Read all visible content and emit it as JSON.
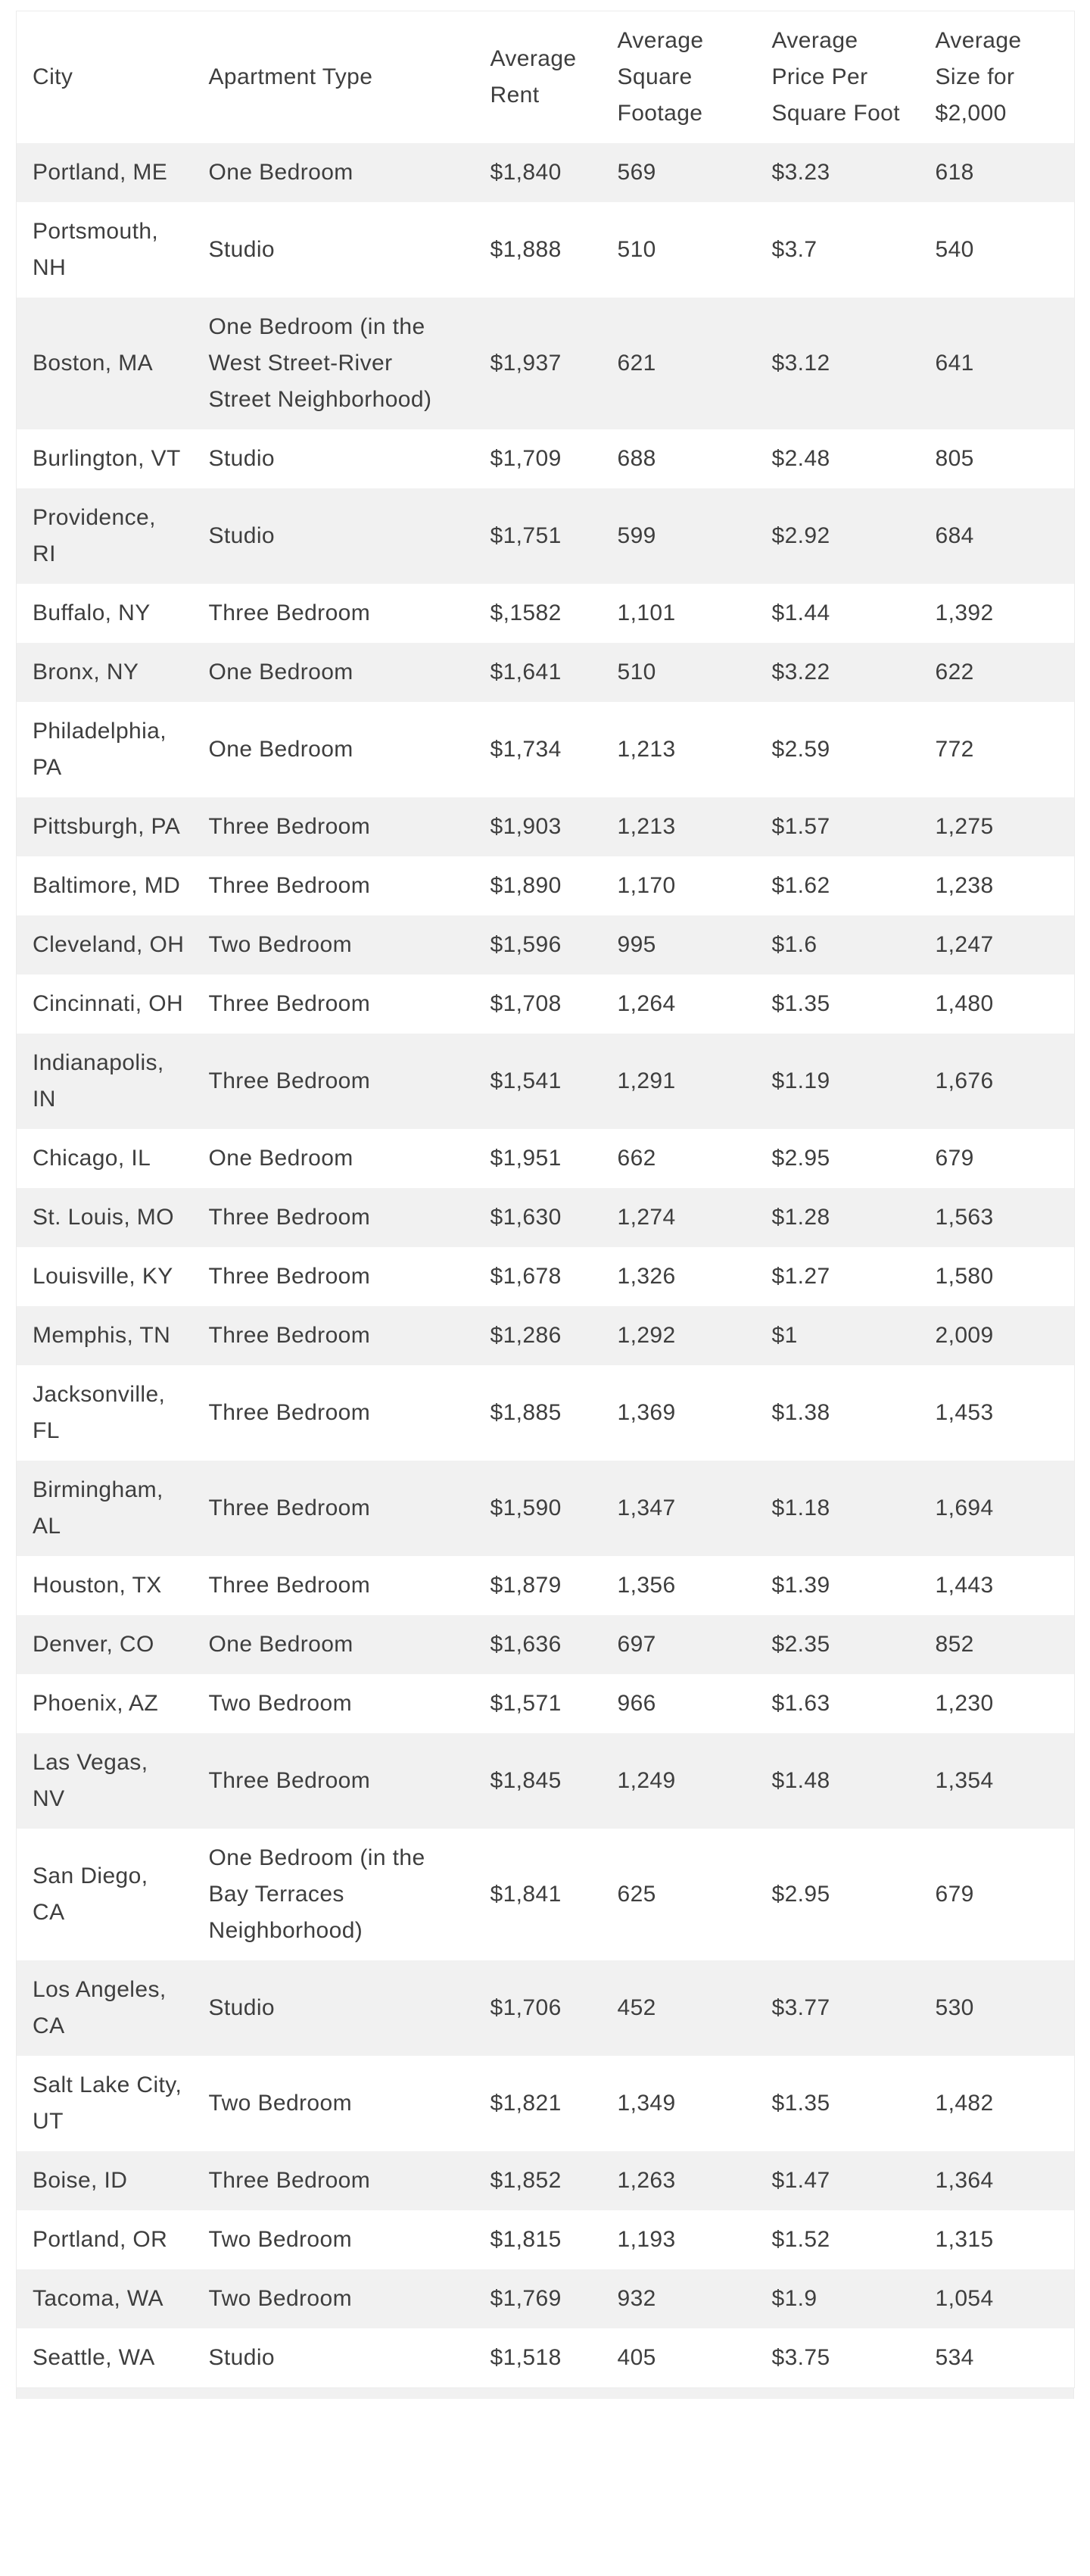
{
  "table": {
    "headers": [
      "City",
      "Apartment Type",
      "Average Rent",
      "Average Square Footage",
      "Average Price Per Square Foot",
      "Average Size for $2,000"
    ],
    "rows": [
      [
        "Portland, ME",
        "One Bedroom",
        "$1,840",
        "569",
        "$3.23",
        "618"
      ],
      [
        "Portsmouth, NH",
        "Studio",
        "$1,888",
        "510",
        "$3.7",
        "540"
      ],
      [
        "Boston, MA",
        "One Bedroom (in the West Street-River Street Neighborhood)",
        "$1,937",
        "621",
        "$3.12",
        "641"
      ],
      [
        "Burlington, VT",
        "Studio",
        "$1,709",
        "688",
        "$2.48",
        "805"
      ],
      [
        "Providence, RI",
        "Studio",
        "$1,751",
        "599",
        "$2.92",
        "684"
      ],
      [
        "Buffalo, NY",
        "Three Bedroom",
        "$,1582",
        "1,101",
        "$1.44",
        "1,392"
      ],
      [
        "Bronx, NY",
        "One Bedroom",
        "$1,641",
        "510",
        "$3.22",
        "622"
      ],
      [
        "Philadelphia, PA",
        "One Bedroom",
        "$1,734",
        "1,213",
        "$2.59",
        "772"
      ],
      [
        "Pittsburgh, PA",
        "Three Bedroom",
        "$1,903",
        "1,213",
        "$1.57",
        "1,275"
      ],
      [
        "Baltimore, MD",
        "Three Bedroom",
        "$1,890",
        "1,170",
        "$1.62",
        "1,238"
      ],
      [
        "Cleveland, OH",
        "Two Bedroom",
        "$1,596",
        "995",
        "$1.6",
        "1,247"
      ],
      [
        "Cincinnati, OH",
        "Three Bedroom",
        "$1,708",
        "1,264",
        "$1.35",
        "1,480"
      ],
      [
        "Indianapolis, IN",
        "Three Bedroom",
        "$1,541",
        "1,291",
        "$1.19",
        "1,676"
      ],
      [
        "Chicago, IL",
        "One Bedroom",
        "$1,951",
        "662",
        "$2.95",
        "679"
      ],
      [
        "St. Louis, MO",
        "Three Bedroom",
        "$1,630",
        "1,274",
        "$1.28",
        "1,563"
      ],
      [
        "Louisville, KY",
        "Three Bedroom",
        "$1,678",
        "1,326",
        "$1.27",
        "1,580"
      ],
      [
        "Memphis, TN",
        "Three Bedroom",
        "$1,286",
        "1,292",
        "$1",
        "2,009"
      ],
      [
        "Jacksonville, FL",
        "Three Bedroom",
        "$1,885",
        "1,369",
        "$1.38",
        "1,453"
      ],
      [
        "Birmingham, AL",
        "Three Bedroom",
        "$1,590",
        "1,347",
        "$1.18",
        "1,694"
      ],
      [
        "Houston, TX",
        "Three Bedroom",
        "$1,879",
        "1,356",
        "$1.39",
        "1,443"
      ],
      [
        "Denver, CO",
        "One Bedroom",
        "$1,636",
        "697",
        "$2.35",
        "852"
      ],
      [
        "Phoenix, AZ",
        "Two Bedroom",
        "$1,571",
        "966",
        "$1.63",
        "1,230"
      ],
      [
        "Las Vegas, NV",
        "Three Bedroom",
        "$1,845",
        "1,249",
        "$1.48",
        "1,354"
      ],
      [
        "San Diego, CA",
        "One Bedroom (in the Bay Terraces Neighborhood)",
        "$1,841",
        "625",
        "$2.95",
        "679"
      ],
      [
        "Los Angeles, CA",
        "Studio",
        "$1,706",
        "452",
        "$3.77",
        "530"
      ],
      [
        "Salt Lake City, UT",
        "Two Bedroom",
        "$1,821",
        "1,349",
        "$1.35",
        "1,482"
      ],
      [
        "Boise, ID",
        "Three Bedroom",
        "$1,852",
        "1,263",
        "$1.47",
        "1,364"
      ],
      [
        "Portland, OR",
        "Two Bedroom",
        "$1,815",
        "1,193",
        "$1.52",
        "1,315"
      ],
      [
        "Tacoma, WA",
        "Two Bedroom",
        "$1,769",
        "932",
        "$1.9",
        "1,054"
      ],
      [
        "Seattle, WA",
        "Studio",
        "$1,518",
        "405",
        "$3.75",
        "534"
      ]
    ],
    "colors": {
      "stripe": "#f1f1f1",
      "text": "#3e3e3e",
      "border": "#ececec",
      "background": "#ffffff"
    }
  },
  "chart_data": {
    "type": "table",
    "title": "",
    "columns": [
      "City",
      "Apartment Type",
      "Average Rent",
      "Average Square Footage",
      "Average Price Per Square Foot",
      "Average Size for $2,000"
    ],
    "rows": [
      {
        "city": "Portland, ME",
        "apartment_type": "One Bedroom",
        "average_rent": "$1,840",
        "average_square_footage": "569",
        "average_price_per_square_foot": "$3.23",
        "average_size_for_2000": "618"
      },
      {
        "city": "Portsmouth, NH",
        "apartment_type": "Studio",
        "average_rent": "$1,888",
        "average_square_footage": "510",
        "average_price_per_square_foot": "$3.7",
        "average_size_for_2000": "540"
      },
      {
        "city": "Boston, MA",
        "apartment_type": "One Bedroom (in the West Street-River Street Neighborhood)",
        "average_rent": "$1,937",
        "average_square_footage": "621",
        "average_price_per_square_foot": "$3.12",
        "average_size_for_2000": "641"
      },
      {
        "city": "Burlington, VT",
        "apartment_type": "Studio",
        "average_rent": "$1,709",
        "average_square_footage": "688",
        "average_price_per_square_foot": "$2.48",
        "average_size_for_2000": "805"
      },
      {
        "city": "Providence, RI",
        "apartment_type": "Studio",
        "average_rent": "$1,751",
        "average_square_footage": "599",
        "average_price_per_square_foot": "$2.92",
        "average_size_for_2000": "684"
      },
      {
        "city": "Buffalo, NY",
        "apartment_type": "Three Bedroom",
        "average_rent": "$,1582",
        "average_square_footage": "1,101",
        "average_price_per_square_foot": "$1.44",
        "average_size_for_2000": "1,392"
      },
      {
        "city": "Bronx, NY",
        "apartment_type": "One Bedroom",
        "average_rent": "$1,641",
        "average_square_footage": "510",
        "average_price_per_square_foot": "$3.22",
        "average_size_for_2000": "622"
      },
      {
        "city": "Philadelphia, PA",
        "apartment_type": "One Bedroom",
        "average_rent": "$1,734",
        "average_square_footage": "1,213",
        "average_price_per_square_foot": "$2.59",
        "average_size_for_2000": "772"
      },
      {
        "city": "Pittsburgh, PA",
        "apartment_type": "Three Bedroom",
        "average_rent": "$1,903",
        "average_square_footage": "1,213",
        "average_price_per_square_foot": "$1.57",
        "average_size_for_2000": "1,275"
      },
      {
        "city": "Baltimore, MD",
        "apartment_type": "Three Bedroom",
        "average_rent": "$1,890",
        "average_square_footage": "1,170",
        "average_price_per_square_foot": "$1.62",
        "average_size_for_2000": "1,238"
      },
      {
        "city": "Cleveland, OH",
        "apartment_type": "Two Bedroom",
        "average_rent": "$1,596",
        "average_square_footage": "995",
        "average_price_per_square_foot": "$1.6",
        "average_size_for_2000": "1,247"
      },
      {
        "city": "Cincinnati, OH",
        "apartment_type": "Three Bedroom",
        "average_rent": "$1,708",
        "average_square_footage": "1,264",
        "average_price_per_square_foot": "$1.35",
        "average_size_for_2000": "1,480"
      },
      {
        "city": "Indianapolis, IN",
        "apartment_type": "Three Bedroom",
        "average_rent": "$1,541",
        "average_square_footage": "1,291",
        "average_price_per_square_foot": "$1.19",
        "average_size_for_2000": "1,676"
      },
      {
        "city": "Chicago, IL",
        "apartment_type": "One Bedroom",
        "average_rent": "$1,951",
        "average_square_footage": "662",
        "average_price_per_square_foot": "$2.95",
        "average_size_for_2000": "679"
      },
      {
        "city": "St. Louis, MO",
        "apartment_type": "Three Bedroom",
        "average_rent": "$1,630",
        "average_square_footage": "1,274",
        "average_price_per_square_foot": "$1.28",
        "average_size_for_2000": "1,563"
      },
      {
        "city": "Louisville, KY",
        "apartment_type": "Three Bedroom",
        "average_rent": "$1,678",
        "average_square_footage": "1,326",
        "average_price_per_square_foot": "$1.27",
        "average_size_for_2000": "1,580"
      },
      {
        "city": "Memphis, TN",
        "apartment_type": "Three Bedroom",
        "average_rent": "$1,286",
        "average_square_footage": "1,292",
        "average_price_per_square_foot": "$1",
        "average_size_for_2000": "2,009"
      },
      {
        "city": "Jacksonville, FL",
        "apartment_type": "Three Bedroom",
        "average_rent": "$1,885",
        "average_square_footage": "1,369",
        "average_price_per_square_foot": "$1.38",
        "average_size_for_2000": "1,453"
      },
      {
        "city": "Birmingham, AL",
        "apartment_type": "Three Bedroom",
        "average_rent": "$1,590",
        "average_square_footage": "1,347",
        "average_price_per_square_foot": "$1.18",
        "average_size_for_2000": "1,694"
      },
      {
        "city": "Houston, TX",
        "apartment_type": "Three Bedroom",
        "average_rent": "$1,879",
        "average_square_footage": "1,356",
        "average_price_per_square_foot": "$1.39",
        "average_size_for_2000": "1,443"
      },
      {
        "city": "Denver, CO",
        "apartment_type": "One Bedroom",
        "average_rent": "$1,636",
        "average_square_footage": "697",
        "average_price_per_square_foot": "$2.35",
        "average_size_for_2000": "852"
      },
      {
        "city": "Phoenix, AZ",
        "apartment_type": "Two Bedroom",
        "average_rent": "$1,571",
        "average_square_footage": "966",
        "average_price_per_square_foot": "$1.63",
        "average_size_for_2000": "1,230"
      },
      {
        "city": "Las Vegas, NV",
        "apartment_type": "Three Bedroom",
        "average_rent": "$1,845",
        "average_square_footage": "1,249",
        "average_price_per_square_foot": "$1.48",
        "average_size_for_2000": "1,354"
      },
      {
        "city": "San Diego, CA",
        "apartment_type": "One Bedroom (in the Bay Terraces Neighborhood)",
        "average_rent": "$1,841",
        "average_square_footage": "625",
        "average_price_per_square_foot": "$2.95",
        "average_size_for_2000": "679"
      },
      {
        "city": "Los Angeles, CA",
        "apartment_type": "Studio",
        "average_rent": "$1,706",
        "average_square_footage": "452",
        "average_price_per_square_foot": "$3.77",
        "average_size_for_2000": "530"
      },
      {
        "city": "Salt Lake City, UT",
        "apartment_type": "Two Bedroom",
        "average_rent": "$1,821",
        "average_square_footage": "1,349",
        "average_price_per_square_foot": "$1.35",
        "average_size_for_2000": "1,482"
      },
      {
        "city": "Boise, ID",
        "apartment_type": "Three Bedroom",
        "average_rent": "$1,852",
        "average_square_footage": "1,263",
        "average_price_per_square_foot": "$1.47",
        "average_size_for_2000": "1,364"
      },
      {
        "city": "Portland, OR",
        "apartment_type": "Two Bedroom",
        "average_rent": "$1,815",
        "average_square_footage": "1,193",
        "average_price_per_square_foot": "$1.52",
        "average_size_for_2000": "1,315"
      },
      {
        "city": "Tacoma, WA",
        "apartment_type": "Two Bedroom",
        "average_rent": "$1,769",
        "average_square_footage": "932",
        "average_price_per_square_foot": "$1.9",
        "average_size_for_2000": "1,054"
      },
      {
        "city": "Seattle, WA",
        "apartment_type": "Studio",
        "average_rent": "$1,518",
        "average_square_footage": "405",
        "average_price_per_square_foot": "$3.75",
        "average_size_for_2000": "534"
      }
    ],
    "layout": {
      "striped_rows": true,
      "stripe_on_odd_rows": true,
      "header_background": "#ffffff",
      "grid": false
    }
  }
}
